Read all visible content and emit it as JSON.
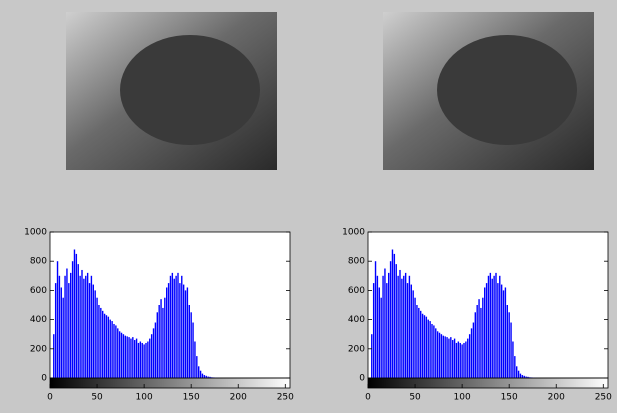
{
  "chart_data": [
    {
      "type": "stem",
      "color": "#0000ff",
      "x": [
        0,
        2,
        4,
        6,
        8,
        10,
        12,
        14,
        16,
        18,
        20,
        22,
        24,
        26,
        28,
        30,
        32,
        34,
        36,
        38,
        40,
        42,
        44,
        46,
        48,
        50,
        52,
        54,
        56,
        58,
        60,
        62,
        64,
        66,
        68,
        70,
        72,
        74,
        76,
        78,
        80,
        82,
        84,
        86,
        88,
        90,
        92,
        94,
        96,
        98,
        100,
        102,
        104,
        106,
        108,
        110,
        112,
        114,
        116,
        118,
        120,
        122,
        124,
        126,
        128,
        130,
        132,
        134,
        136,
        138,
        140,
        142,
        144,
        146,
        148,
        150,
        152,
        154,
        156,
        158,
        160,
        162,
        164,
        166,
        168,
        170,
        172,
        174,
        176,
        178,
        180
      ],
      "values": [
        0,
        0,
        300,
        650,
        800,
        700,
        620,
        550,
        700,
        750,
        650,
        720,
        800,
        880,
        850,
        780,
        700,
        740,
        680,
        700,
        720,
        650,
        700,
        640,
        600,
        550,
        500,
        480,
        460,
        440,
        430,
        420,
        400,
        390,
        370,
        360,
        340,
        320,
        310,
        300,
        290,
        285,
        280,
        270,
        280,
        260,
        270,
        240,
        250,
        240,
        230,
        240,
        250,
        270,
        300,
        340,
        380,
        450,
        500,
        540,
        480,
        550,
        620,
        650,
        700,
        720,
        680,
        700,
        720,
        650,
        700,
        640,
        600,
        620,
        500,
        450,
        380,
        250,
        150,
        80,
        50,
        30,
        20,
        15,
        10,
        8,
        5,
        4,
        3,
        2,
        1
      ],
      "xlim": [
        0,
        255
      ],
      "xticks": [
        0,
        50,
        100,
        150,
        200,
        250
      ],
      "ylim": [
        0,
        1000
      ],
      "yticks": [
        0,
        200,
        400,
        600,
        800,
        1000
      ]
    },
    {
      "type": "stem",
      "color": "#0000ff",
      "x": [
        0,
        2,
        4,
        6,
        8,
        10,
        12,
        14,
        16,
        18,
        20,
        22,
        24,
        26,
        28,
        30,
        32,
        34,
        36,
        38,
        40,
        42,
        44,
        46,
        48,
        50,
        52,
        54,
        56,
        58,
        60,
        62,
        64,
        66,
        68,
        70,
        72,
        74,
        76,
        78,
        80,
        82,
        84,
        86,
        88,
        90,
        92,
        94,
        96,
        98,
        100,
        102,
        104,
        106,
        108,
        110,
        112,
        114,
        116,
        118,
        120,
        122,
        124,
        126,
        128,
        130,
        132,
        134,
        136,
        138,
        140,
        142,
        144,
        146,
        148,
        150,
        152,
        154,
        156,
        158,
        160,
        162,
        164,
        166,
        168,
        170,
        172,
        174,
        176,
        178,
        180
      ],
      "values": [
        0,
        0,
        300,
        650,
        800,
        700,
        620,
        550,
        700,
        750,
        650,
        720,
        800,
        880,
        850,
        780,
        700,
        740,
        680,
        700,
        720,
        650,
        700,
        640,
        600,
        550,
        500,
        480,
        460,
        440,
        430,
        420,
        400,
        390,
        370,
        360,
        340,
        320,
        310,
        300,
        290,
        285,
        280,
        270,
        280,
        260,
        270,
        240,
        250,
        240,
        230,
        240,
        250,
        270,
        300,
        340,
        380,
        450,
        500,
        540,
        480,
        550,
        620,
        650,
        700,
        720,
        680,
        700,
        720,
        650,
        700,
        640,
        600,
        620,
        500,
        450,
        380,
        250,
        150,
        80,
        50,
        30,
        20,
        15,
        10,
        8,
        5,
        4,
        3,
        2,
        1
      ],
      "xlim": [
        0,
        255
      ],
      "xticks": [
        0,
        50,
        100,
        150,
        200,
        250
      ],
      "ylim": [
        0,
        1000
      ],
      "yticks": [
        0,
        200,
        400,
        600,
        800,
        1000
      ]
    }
  ]
}
